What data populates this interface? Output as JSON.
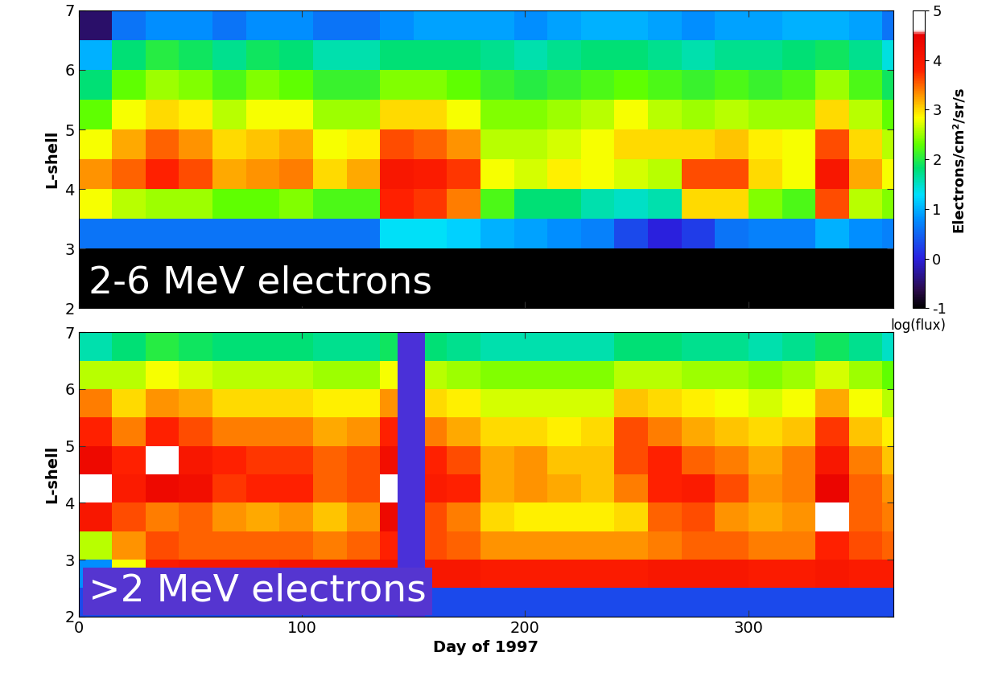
{
  "chart_data": [
    {
      "type": "heatmap",
      "annotation": "2-6 MeV electrons",
      "ylabel": "L-shell",
      "x_edges": [
        0,
        15,
        30,
        45,
        60,
        75,
        90,
        105,
        120,
        135,
        150,
        165,
        180,
        195,
        210,
        225,
        240,
        255,
        270,
        285,
        300,
        315,
        330,
        345,
        360,
        365
      ],
      "y_edges": [
        2,
        2.5,
        3,
        3.5,
        4,
        4.5,
        5,
        5.5,
        6,
        6.5,
        7
      ],
      "cells": [
        [
          -1,
          -1,
          -1,
          -1,
          -1,
          -1,
          -1,
          -1,
          -1,
          -1,
          -1,
          -1,
          -1,
          -1,
          -1,
          -1,
          -1,
          -1,
          -1,
          -1,
          -1,
          -1,
          -1,
          -1,
          -1
        ],
        [
          -1,
          -1,
          -1,
          -1,
          -1,
          -1,
          -1,
          -1,
          -1,
          -1,
          -1,
          -1,
          -1,
          -1,
          -1,
          -1,
          -1,
          -1,
          -1,
          -1,
          -1,
          -1,
          -1,
          -1,
          -1
        ],
        [
          0.6,
          0.6,
          0.6,
          0.6,
          0.6,
          0.6,
          0.6,
          0.6,
          0.6,
          1.3,
          1.3,
          1.2,
          1.0,
          0.9,
          0.8,
          0.7,
          0.3,
          0.0,
          0.2,
          0.6,
          0.7,
          0.7,
          1.0,
          0.8,
          0.7
        ],
        [
          2.8,
          2.6,
          2.5,
          2.5,
          2.3,
          2.3,
          2.4,
          2.2,
          2.2,
          3.8,
          3.7,
          3.4,
          2.2,
          1.8,
          1.8,
          1.6,
          1.5,
          1.6,
          3.0,
          3.0,
          2.4,
          2.2,
          3.6,
          2.6,
          2.4
        ],
        [
          3.3,
          3.5,
          3.8,
          3.6,
          3.2,
          3.3,
          3.4,
          3.0,
          3.2,
          4.0,
          3.9,
          3.7,
          2.8,
          2.7,
          2.9,
          2.8,
          2.7,
          2.6,
          3.6,
          3.6,
          3.0,
          2.8,
          4.0,
          3.2,
          2.8
        ],
        [
          2.8,
          3.2,
          3.5,
          3.3,
          3.0,
          3.1,
          3.2,
          2.8,
          2.9,
          3.6,
          3.5,
          3.3,
          2.6,
          2.6,
          2.7,
          2.8,
          3.0,
          3.0,
          3.0,
          3.1,
          2.9,
          2.8,
          3.6,
          3.0,
          2.6
        ],
        [
          2.3,
          2.8,
          3.0,
          2.9,
          2.6,
          2.8,
          2.8,
          2.5,
          2.5,
          3.0,
          3.0,
          2.8,
          2.4,
          2.4,
          2.5,
          2.6,
          2.8,
          2.6,
          2.5,
          2.6,
          2.5,
          2.5,
          3.0,
          2.6,
          2.3
        ],
        [
          1.8,
          2.3,
          2.5,
          2.4,
          2.2,
          2.4,
          2.3,
          2.1,
          2.1,
          2.4,
          2.4,
          2.3,
          2.1,
          2.0,
          2.1,
          2.2,
          2.3,
          2.2,
          2.1,
          2.2,
          2.1,
          2.2,
          2.5,
          2.2,
          1.9
        ],
        [
          1.0,
          1.8,
          2.0,
          1.9,
          1.7,
          1.9,
          1.8,
          1.6,
          1.6,
          1.8,
          1.8,
          1.8,
          1.7,
          1.6,
          1.7,
          1.8,
          1.8,
          1.7,
          1.6,
          1.7,
          1.7,
          1.8,
          1.9,
          1.7,
          1.4
        ],
        [
          -0.5,
          0.6,
          0.8,
          0.8,
          0.6,
          0.8,
          0.8,
          0.6,
          0.6,
          0.8,
          0.9,
          0.9,
          0.9,
          0.8,
          0.9,
          1.0,
          1.0,
          0.9,
          0.8,
          0.9,
          0.9,
          1.0,
          1.0,
          0.9,
          0.6
        ]
      ],
      "xlim": [
        0,
        365
      ],
      "ylim": [
        2,
        7
      ],
      "xticks": [
        0,
        100,
        200,
        300
      ],
      "yticks": [
        2,
        3,
        4,
        5,
        6,
        7
      ],
      "tick_labels": "y",
      "colorbar": {
        "range": [
          -1,
          5
        ],
        "ticks": [
          -1,
          0,
          1,
          2,
          3,
          4,
          5
        ],
        "label": "Electrons/cm²/sr/s",
        "title": "log(flux)"
      }
    },
    {
      "type": "heatmap",
      "annotation": ">2 MeV electrons",
      "ylabel": "L-shell",
      "xlabel": "Day of 1997",
      "x_edges": [
        0,
        15,
        30,
        45,
        60,
        75,
        90,
        105,
        120,
        135,
        143,
        155,
        165,
        180,
        195,
        210,
        225,
        240,
        255,
        270,
        285,
        300,
        315,
        330,
        345,
        360,
        365
      ],
      "y_edges": [
        2,
        2.5,
        3,
        3.5,
        4,
        4.5,
        5,
        5.5,
        6,
        6.5,
        7
      ],
      "cells": [
        [
          0.3,
          0.3,
          0.3,
          0.3,
          0.3,
          0.3,
          0.3,
          0.3,
          0.3,
          0.3,
          null,
          0.3,
          0.3,
          0.3,
          0.3,
          0.3,
          0.3,
          0.3,
          0.3,
          0.3,
          0.3,
          0.3,
          0.3,
          0.3,
          0.3,
          0.3
        ],
        [
          0.8,
          2.8,
          3.9,
          4.0,
          4.0,
          4.0,
          4.1,
          4.1,
          4.1,
          4.1,
          null,
          4.0,
          4.0,
          3.9,
          3.9,
          3.9,
          3.9,
          3.9,
          4.0,
          4.0,
          4.0,
          3.9,
          3.9,
          4.0,
          3.9,
          3.9
        ],
        [
          2.6,
          3.3,
          3.6,
          3.5,
          3.5,
          3.5,
          3.5,
          3.4,
          3.5,
          3.8,
          null,
          3.6,
          3.5,
          3.3,
          3.3,
          3.3,
          3.3,
          3.3,
          3.4,
          3.5,
          3.5,
          3.4,
          3.4,
          3.8,
          3.6,
          3.5
        ],
        [
          4.0,
          3.6,
          3.4,
          3.5,
          3.3,
          3.2,
          3.3,
          3.1,
          3.3,
          4.3,
          null,
          3.6,
          3.4,
          3.0,
          2.9,
          2.9,
          2.9,
          3.0,
          3.5,
          3.6,
          3.3,
          3.2,
          3.3,
          4.7,
          3.5,
          3.4
        ],
        [
          4.7,
          3.9,
          4.3,
          4.2,
          3.7,
          3.8,
          3.8,
          3.5,
          3.6,
          4.7,
          null,
          3.9,
          3.8,
          3.2,
          3.3,
          3.2,
          3.1,
          3.4,
          3.8,
          3.9,
          3.6,
          3.3,
          3.4,
          4.4,
          3.5,
          3.3
        ],
        [
          4.3,
          3.8,
          4.7,
          4.0,
          3.8,
          3.7,
          3.7,
          3.5,
          3.6,
          4.2,
          null,
          3.8,
          3.6,
          3.2,
          3.3,
          3.1,
          3.1,
          3.6,
          3.8,
          3.5,
          3.4,
          3.2,
          3.4,
          4.0,
          3.4,
          3.1
        ],
        [
          3.8,
          3.4,
          3.8,
          3.6,
          3.4,
          3.4,
          3.4,
          3.2,
          3.3,
          3.8,
          null,
          3.4,
          3.2,
          3.0,
          3.0,
          2.9,
          3.0,
          3.6,
          3.4,
          3.2,
          3.1,
          3.0,
          3.1,
          3.7,
          3.1,
          2.9
        ],
        [
          3.4,
          3.0,
          3.3,
          3.2,
          3.0,
          3.0,
          3.0,
          2.9,
          2.9,
          3.3,
          null,
          3.0,
          2.9,
          2.7,
          2.7,
          2.7,
          2.7,
          3.1,
          3.0,
          2.9,
          2.8,
          2.7,
          2.8,
          3.2,
          2.8,
          2.6
        ],
        [
          2.6,
          2.6,
          2.8,
          2.7,
          2.6,
          2.6,
          2.6,
          2.5,
          2.5,
          2.8,
          null,
          2.6,
          2.5,
          2.4,
          2.4,
          2.4,
          2.4,
          2.6,
          2.6,
          2.5,
          2.5,
          2.4,
          2.5,
          2.7,
          2.5,
          2.3
        ],
        [
          1.6,
          1.8,
          2.0,
          1.9,
          1.8,
          1.8,
          1.8,
          1.7,
          1.7,
          1.9,
          null,
          1.8,
          1.7,
          1.6,
          1.6,
          1.6,
          1.6,
          1.8,
          1.8,
          1.7,
          1.7,
          1.6,
          1.7,
          1.9,
          1.7,
          1.5
        ]
      ],
      "xlim": [
        0,
        365
      ],
      "ylim": [
        2,
        7
      ],
      "xticks": [
        0,
        100,
        200,
        300
      ],
      "yticks": [
        2,
        3,
        4,
        5,
        6,
        7
      ]
    }
  ]
}
